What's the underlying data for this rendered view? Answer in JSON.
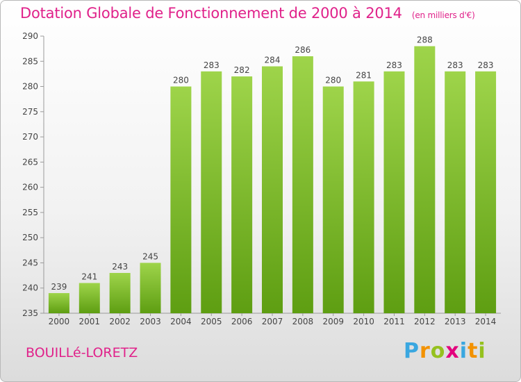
{
  "title": "Dotation Globale de Fonctionnement de 2000 à 2014",
  "subtitle": "(en milliers d'€)",
  "commune": "BOUILLé-LORETZ",
  "logo": {
    "letters": [
      "P",
      "r",
      "o",
      "x",
      "i",
      "t",
      "i"
    ],
    "colors": [
      "#3aa7e0",
      "#f39200",
      "#95c11f",
      "#e3007d",
      "#3aa7e0",
      "#f39200",
      "#95c11f"
    ]
  },
  "colors": {
    "bar_top": "#9ed44a",
    "bar_bottom": "#5e9e12",
    "title": "#e0218a"
  },
  "chart_data": {
    "type": "bar",
    "title": "Dotation Globale de Fonctionnement de 2000 à 2014",
    "subtitle": "(en milliers d'€)",
    "xlabel": "",
    "ylabel": "",
    "categories": [
      "2000",
      "2001",
      "2002",
      "2003",
      "2004",
      "2005",
      "2006",
      "2007",
      "2008",
      "2009",
      "2010",
      "2011",
      "2012",
      "2013",
      "2014"
    ],
    "values": [
      239,
      241,
      243,
      245,
      280,
      283,
      282,
      284,
      286,
      280,
      281,
      283,
      288,
      283,
      283
    ],
    "ylim": [
      235,
      290
    ],
    "yticks": [
      235,
      240,
      245,
      250,
      255,
      260,
      265,
      270,
      275,
      280,
      285,
      290
    ],
    "grid": false,
    "legend": "none"
  }
}
